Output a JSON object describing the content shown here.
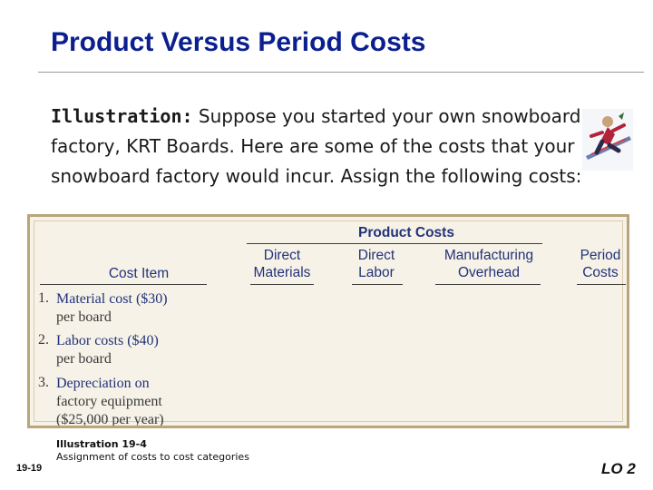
{
  "slide": {
    "title": "Product Versus Period Costs",
    "intro_lead": "Illustration:",
    "intro_text": "Suppose you started your own snowboard factory, KRT Boards. Here are some of the costs that your snowboard factory would incur.  Assign the following costs:",
    "slide_number": "19-19",
    "learning_objective": "LO 2"
  },
  "table": {
    "group_header": "Product Costs",
    "columns": {
      "cost_item": "Cost Item",
      "direct_materials": "Direct Materials",
      "direct_labor": "Direct Labor",
      "manufacturing_overhead": "Manufacturing Overhead",
      "period_costs": "Period Costs"
    },
    "rows": [
      {
        "num": "1.",
        "line1": "Material cost ($30)",
        "line2": "per board",
        "line3": ""
      },
      {
        "num": "2.",
        "line1": "Labor costs ($40)",
        "line2": "per board",
        "line3": ""
      },
      {
        "num": "3.",
        "line1": "Depreciation on",
        "line2": "factory equipment",
        "line3": "($25,000 per year)"
      }
    ]
  },
  "caption": {
    "title": "Illustration 19-4",
    "text": "Assignment of costs to cost categories"
  },
  "icons": {
    "snowboarder": "snowboarder-icon"
  }
}
